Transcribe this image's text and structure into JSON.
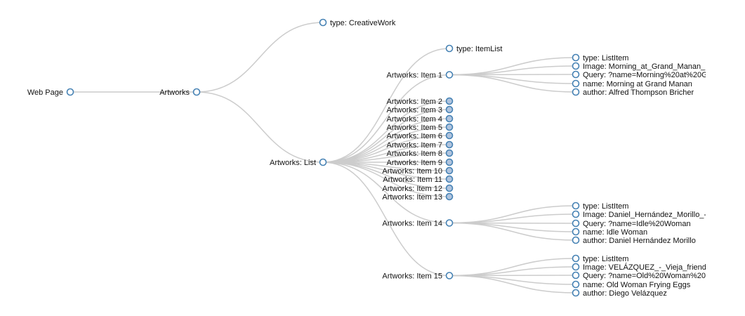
{
  "tree": {
    "colors": {
      "link": "#cccccc",
      "node_stroke": "#4682b4",
      "node_open_fill": "#ffffff",
      "node_collapsed_fill": "#b0c4de"
    },
    "root": {
      "label": "Web Page",
      "collapsed": false,
      "children": [
        {
          "label": "Artworks",
          "collapsed": false,
          "children": [
            {
              "label": "type: CreativeWork",
              "collapsed": false
            },
            {
              "label": "Artworks: List",
              "collapsed": false,
              "children": [
                {
                  "label": "type: ItemList",
                  "collapsed": false
                },
                {
                  "label": "Artworks: Item 1",
                  "collapsed": false,
                  "children": [
                    {
                      "label": "type: ListItem",
                      "collapsed": false
                    },
                    {
                      "label": "Image: Morning_at_Grand_Manan_",
                      "collapsed": false
                    },
                    {
                      "label": "Query: ?name=Morning%20at%20G",
                      "collapsed": false
                    },
                    {
                      "label": "name: Morning at Grand Manan",
                      "collapsed": false
                    },
                    {
                      "label": "author: Alfred Thompson Bricher",
                      "collapsed": false
                    }
                  ]
                },
                {
                  "label": "Artworks: Item 2",
                  "collapsed": true
                },
                {
                  "label": "Artworks: Item 3",
                  "collapsed": true
                },
                {
                  "label": "Artworks: Item 4",
                  "collapsed": true
                },
                {
                  "label": "Artworks: Item 5",
                  "collapsed": true
                },
                {
                  "label": "Artworks: Item 6",
                  "collapsed": true
                },
                {
                  "label": "Artworks: Item 7",
                  "collapsed": true
                },
                {
                  "label": "Artworks: Item 8",
                  "collapsed": true
                },
                {
                  "label": "Artworks: Item 9",
                  "collapsed": true
                },
                {
                  "label": "Artworks: Item 10",
                  "collapsed": true
                },
                {
                  "label": "Artworks: Item 11",
                  "collapsed": true
                },
                {
                  "label": "Artworks: Item 12",
                  "collapsed": true
                },
                {
                  "label": "Artworks: Item 13",
                  "collapsed": true
                },
                {
                  "label": "Artworks: Item 14",
                  "collapsed": false,
                  "children": [
                    {
                      "label": "type: ListItem",
                      "collapsed": false
                    },
                    {
                      "label": "Image: Daniel_Hernández_Morillo_-",
                      "collapsed": false
                    },
                    {
                      "label": "Query: ?name=Idle%20Woman",
                      "collapsed": false
                    },
                    {
                      "label": "name: Idle Woman",
                      "collapsed": false
                    },
                    {
                      "label": "author: Daniel Hernández Morillo",
                      "collapsed": false
                    }
                  ]
                },
                {
                  "label": "Artworks: Item 15",
                  "collapsed": false,
                  "children": [
                    {
                      "label": "type: ListItem",
                      "collapsed": false
                    },
                    {
                      "label": "Image: VELÁZQUEZ_-_Vieja_friend",
                      "collapsed": false
                    },
                    {
                      "label": "Query: ?name=Old%20Woman%20",
                      "collapsed": false
                    },
                    {
                      "label": "name: Old Woman Frying Eggs",
                      "collapsed": false
                    },
                    {
                      "label": "author: Diego Velázquez",
                      "collapsed": false
                    }
                  ]
                }
              ]
            }
          ]
        }
      ]
    }
  }
}
